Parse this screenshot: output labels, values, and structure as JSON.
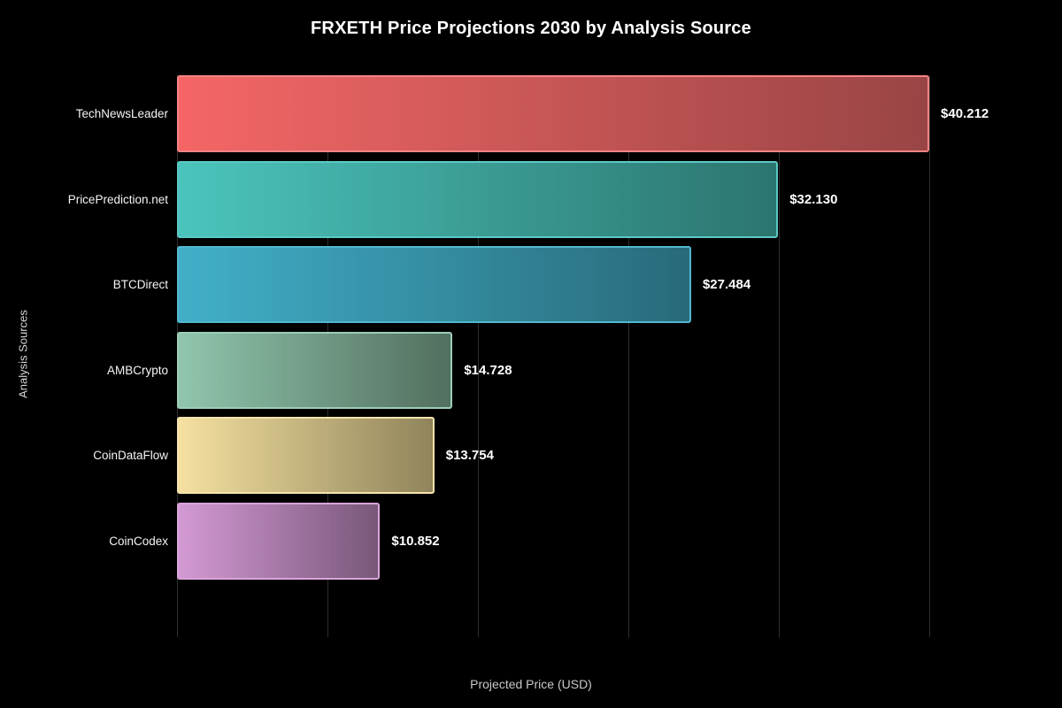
{
  "title": "FRXETH Price Projections 2030 by Analysis Source",
  "axes": {
    "x_label": "Projected Price (USD)",
    "y_label": "Analysis Sources"
  },
  "colors": {
    "background": "#000000",
    "title_text": "#ffffff",
    "axis_label_text": "#c9c9c9",
    "value_label_text": "#ffffff",
    "category_label_text": "#f5f5f5",
    "gridline": "#2f2f2f"
  },
  "chart_data": {
    "type": "bar",
    "orientation": "horizontal",
    "title": "FRXETH Price Projections 2030 by Analysis Source",
    "xlabel": "Projected Price (USD)",
    "ylabel": "Analysis Sources",
    "categories": [
      "TechNewsLeader",
      "PricePrediction.net",
      "BTCDirect",
      "AMBCrypto",
      "CoinDataFlow",
      "CoinCodex"
    ],
    "values": [
      40.212,
      32.13,
      27.484,
      14.728,
      13.754,
      10.852
    ],
    "value_labels": [
      "$40.212",
      "$32.130",
      "$27.484",
      "$14.728",
      "$13.754",
      "$10.852"
    ],
    "xlim": [
      0,
      45.414
    ],
    "grid": "vertical",
    "grid_ticks": [
      0,
      8.042,
      16.085,
      24.127,
      32.17,
      40.212
    ],
    "tick_labels_shown": false,
    "legend": "none",
    "bar_styles": [
      {
        "color_start": "#ff6b6b",
        "color_end": "#a04848",
        "border": "#ff8a8a"
      },
      {
        "color_start": "#4ecdc4",
        "color_end": "#2e7a74",
        "border": "#5ed3cb"
      },
      {
        "color_start": "#45b7d1",
        "color_end": "#2a6f80",
        "border": "#55c0d8"
      },
      {
        "color_start": "#96ceb4",
        "color_end": "#567463",
        "border": "#a4d6bf"
      },
      {
        "color_start": "#ffeaa7",
        "color_end": "#968a5f",
        "border": "#ffedb4"
      },
      {
        "color_start": "#dda0dd",
        "color_end": "#7d5c7f",
        "border": "#e3abe3"
      }
    ]
  }
}
